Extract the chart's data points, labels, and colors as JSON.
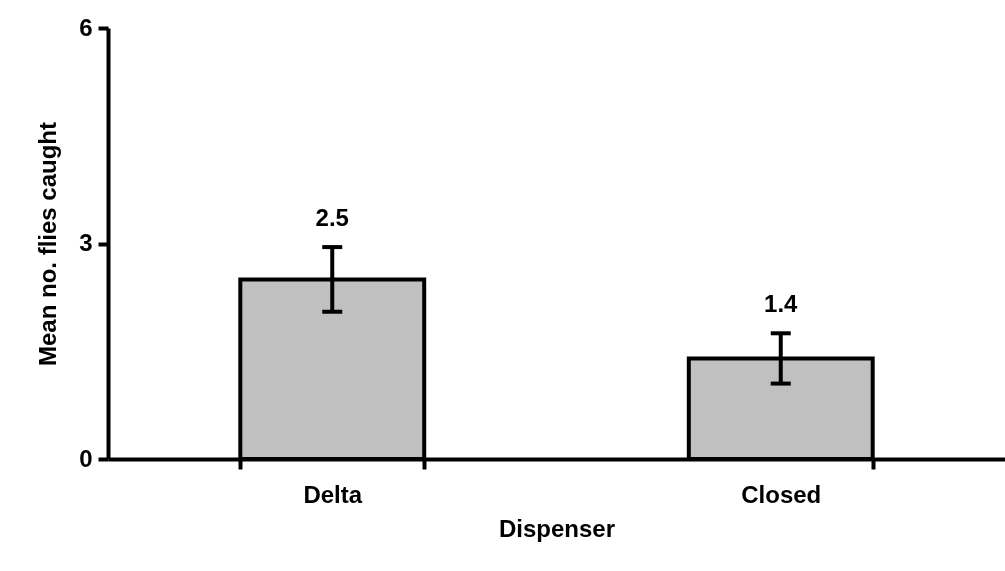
{
  "chart_data": {
    "type": "bar",
    "xlabel": "Dispenser",
    "ylabel": "Mean no. flies caught",
    "categories": [
      "Delta",
      "Closed"
    ],
    "values": [
      2.5,
      1.4
    ],
    "errors": [
      [
        2.05,
        2.95
      ],
      [
        1.05,
        1.75
      ]
    ],
    "color": "#c0c0c0",
    "ylim": [
      0,
      6
    ],
    "yticks": [
      0,
      3,
      6
    ],
    "grid": false,
    "data_labels": true
  }
}
